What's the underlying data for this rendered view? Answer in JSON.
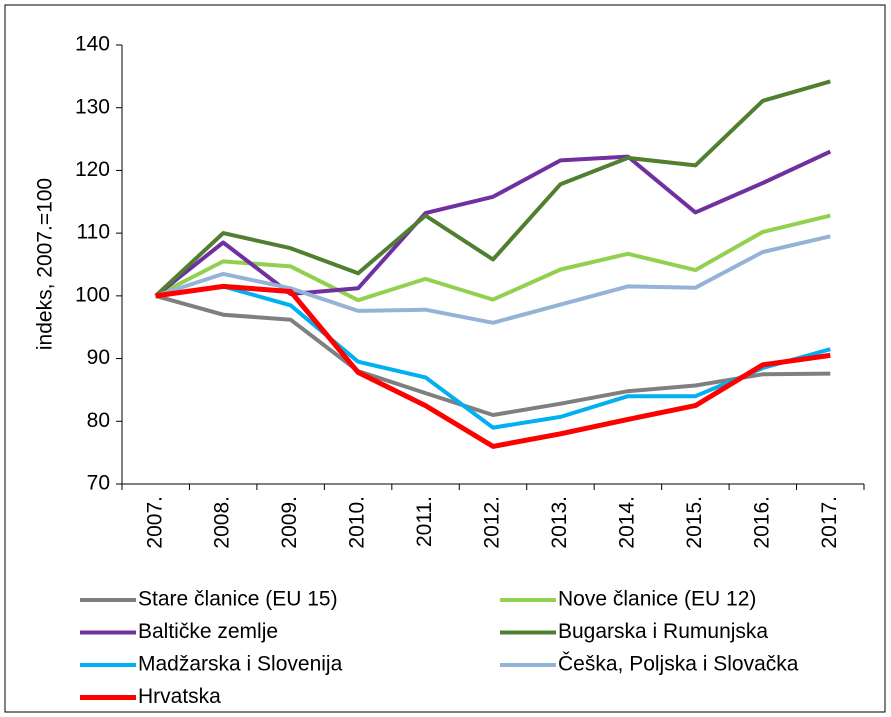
{
  "chart_data": {
    "type": "line",
    "y_label": "indeks, 2007.=100",
    "categories": [
      "2007.",
      "2008.",
      "2009.",
      "2010.",
      "2011.",
      "2012.",
      "2013.",
      "2014.",
      "2015.",
      "2016.",
      "2017."
    ],
    "series": [
      {
        "name": "Stare članice (EU 15)",
        "color": "#7f7f7f",
        "values": [
          100,
          97,
          96.2,
          88,
          84.5,
          81,
          82.8,
          84.8,
          85.7,
          87.5,
          87.6
        ]
      },
      {
        "name": "Nove članice (EU 12)",
        "color": "#92d050",
        "values": [
          100,
          105.5,
          104.7,
          99.3,
          102.7,
          99.4,
          104.2,
          106.7,
          104.1,
          110.2,
          112.8
        ]
      },
      {
        "name": "Baltičke zemlje",
        "color": "#7030a0",
        "values": [
          100,
          108.5,
          100.3,
          101.2,
          113.2,
          115.8,
          121.6,
          122.2,
          113.3,
          118,
          123
        ]
      },
      {
        "name": "Bugarska i Rumunjska",
        "color": "#4f7f2f",
        "values": [
          100,
          110,
          107.6,
          103.6,
          112.8,
          105.8,
          117.8,
          122,
          120.8,
          131.1,
          134.2
        ]
      },
      {
        "name": "Madžarska i Slovenija",
        "color": "#00b0f0",
        "values": [
          100,
          101.5,
          98.5,
          89.5,
          87,
          79,
          80.7,
          84,
          84,
          88.5,
          91.5
        ]
      },
      {
        "name": "Češka, Poljska i Slovačka",
        "color": "#95b3d7",
        "values": [
          100,
          103.5,
          101.2,
          97.6,
          97.8,
          95.7,
          98.6,
          101.5,
          101.3,
          107,
          109.5
        ]
      },
      {
        "name": "Hrvatska",
        "color": "#ff0000",
        "values": [
          100,
          101.5,
          100.7,
          87.8,
          82.5,
          76,
          78,
          80.3,
          82.5,
          89,
          90.5
        ]
      }
    ],
    "ylim": [
      70,
      140
    ],
    "yticks": [
      70,
      80,
      90,
      100,
      110,
      120,
      130,
      140
    ],
    "grid": false,
    "legend": "bottom"
  }
}
